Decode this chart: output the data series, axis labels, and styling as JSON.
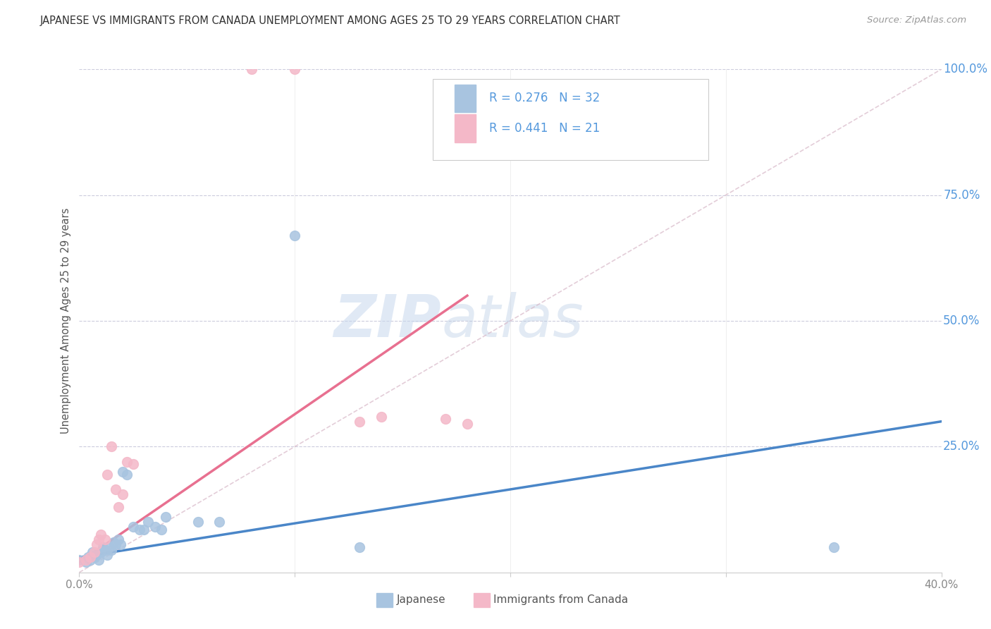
{
  "title": "JAPANESE VS IMMIGRANTS FROM CANADA UNEMPLOYMENT AMONG AGES 25 TO 29 YEARS CORRELATION CHART",
  "source": "Source: ZipAtlas.com",
  "ylabel": "Unemployment Among Ages 25 to 29 years",
  "xlim": [
    0.0,
    0.4
  ],
  "ylim": [
    0.0,
    1.0
  ],
  "x_ticks": [
    0.0,
    0.1,
    0.2,
    0.3,
    0.4
  ],
  "x_tick_labels": [
    "0.0%",
    "",
    "",
    "",
    "40.0%"
  ],
  "y_ticks_right": [
    0.0,
    0.25,
    0.5,
    0.75,
    1.0
  ],
  "y_tick_labels_right": [
    "",
    "25.0%",
    "50.0%",
    "75.0%",
    "100.0%"
  ],
  "japanese_R": 0.276,
  "japanese_N": 32,
  "canada_R": 0.441,
  "canada_N": 21,
  "japanese_color": "#a8c4e0",
  "canada_color": "#f4b8c8",
  "japanese_line_color": "#4a86c8",
  "canada_line_color": "#e87090",
  "diagonal_color": "#c8c8d8",
  "watermark_zip": "ZIP",
  "watermark_atlas": "atlas",
  "japanese_line": [
    0.0,
    0.03,
    0.4,
    0.3
  ],
  "canada_line": [
    0.0,
    0.02,
    0.18,
    0.55
  ],
  "japanese_points": [
    [
      0.0,
      0.025
    ],
    [
      0.003,
      0.02
    ],
    [
      0.004,
      0.03
    ],
    [
      0.005,
      0.025
    ],
    [
      0.006,
      0.04
    ],
    [
      0.007,
      0.03
    ],
    [
      0.008,
      0.035
    ],
    [
      0.009,
      0.025
    ],
    [
      0.01,
      0.04
    ],
    [
      0.011,
      0.05
    ],
    [
      0.012,
      0.045
    ],
    [
      0.013,
      0.035
    ],
    [
      0.014,
      0.05
    ],
    [
      0.015,
      0.045
    ],
    [
      0.016,
      0.06
    ],
    [
      0.017,
      0.055
    ],
    [
      0.018,
      0.065
    ],
    [
      0.019,
      0.055
    ],
    [
      0.02,
      0.2
    ],
    [
      0.022,
      0.195
    ],
    [
      0.025,
      0.09
    ],
    [
      0.028,
      0.085
    ],
    [
      0.03,
      0.085
    ],
    [
      0.032,
      0.1
    ],
    [
      0.035,
      0.09
    ],
    [
      0.038,
      0.085
    ],
    [
      0.04,
      0.11
    ],
    [
      0.055,
      0.1
    ],
    [
      0.065,
      0.1
    ],
    [
      0.1,
      0.67
    ],
    [
      0.13,
      0.05
    ],
    [
      0.35,
      0.05
    ]
  ],
  "canada_points": [
    [
      0.0,
      0.02
    ],
    [
      0.003,
      0.025
    ],
    [
      0.005,
      0.03
    ],
    [
      0.007,
      0.04
    ],
    [
      0.008,
      0.055
    ],
    [
      0.009,
      0.065
    ],
    [
      0.01,
      0.075
    ],
    [
      0.012,
      0.065
    ],
    [
      0.013,
      0.195
    ],
    [
      0.015,
      0.25
    ],
    [
      0.017,
      0.165
    ],
    [
      0.018,
      0.13
    ],
    [
      0.02,
      0.155
    ],
    [
      0.022,
      0.22
    ],
    [
      0.025,
      0.215
    ],
    [
      0.08,
      1.0
    ],
    [
      0.1,
      1.0
    ],
    [
      0.13,
      0.3
    ],
    [
      0.14,
      0.31
    ],
    [
      0.17,
      0.305
    ],
    [
      0.18,
      0.295
    ]
  ]
}
